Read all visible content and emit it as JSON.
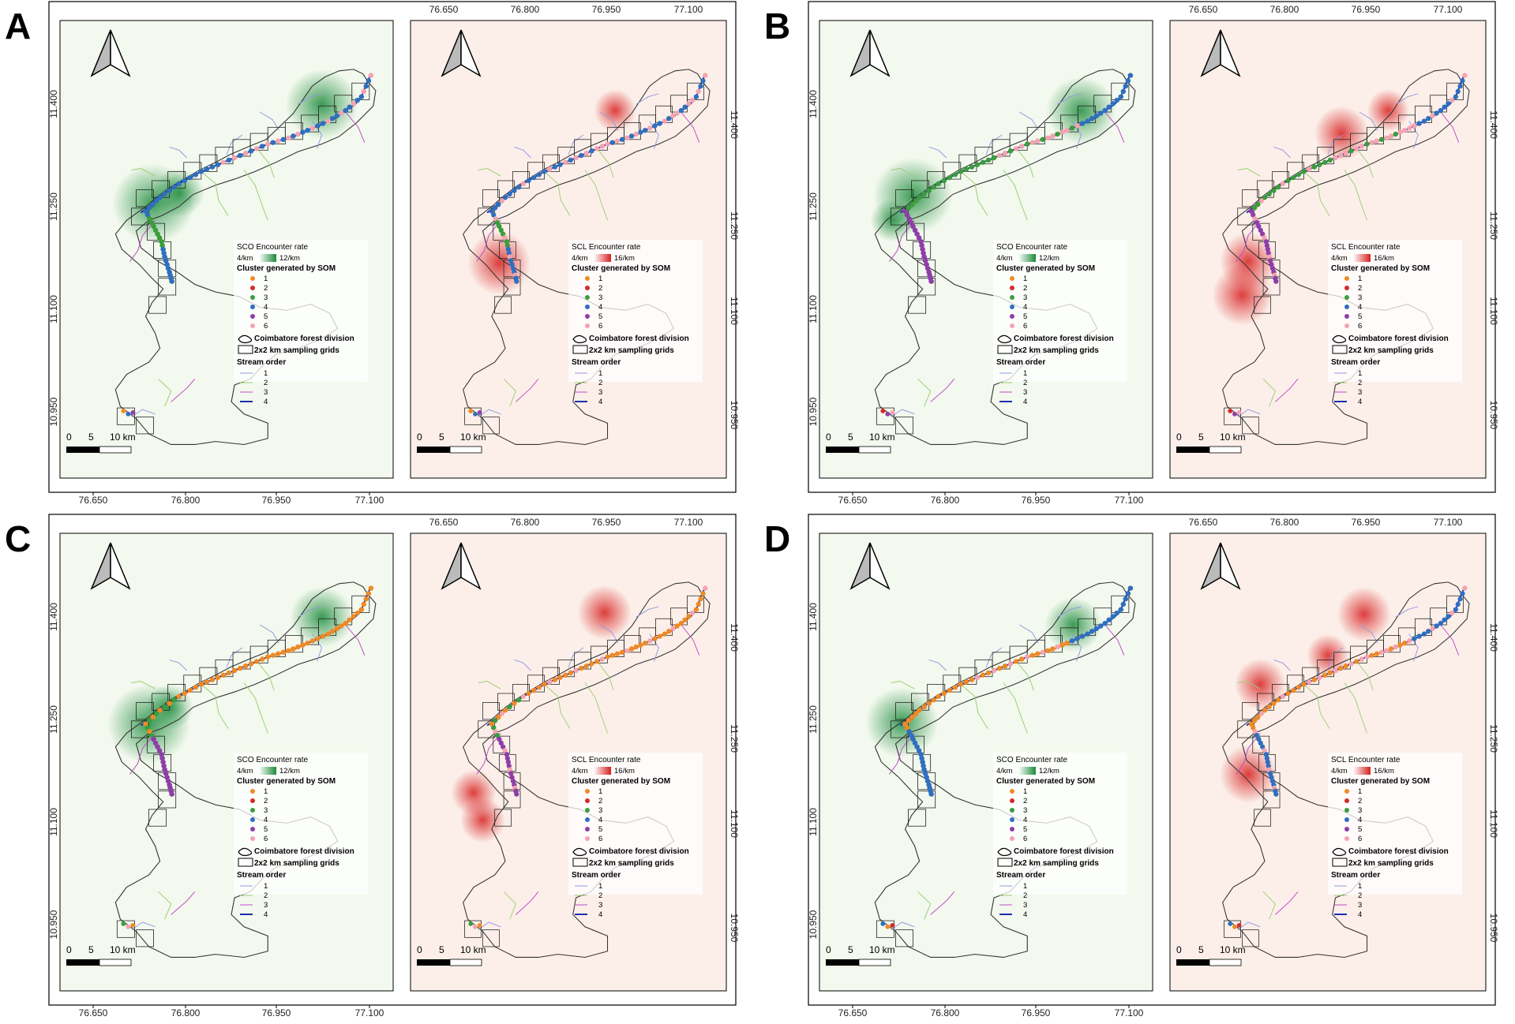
{
  "figure": {
    "panels": [
      {
        "letter": "A",
        "frame": "thin"
      },
      {
        "letter": "B",
        "frame": "thin"
      },
      {
        "letter": "C",
        "frame": "thin"
      },
      {
        "letter": "D",
        "frame": "thin"
      }
    ],
    "lon_ticks": [
      "76.650",
      "76.800",
      "76.950",
      "77.100"
    ],
    "lat_ticks": [
      "11.400",
      "11.250",
      "11.100",
      "10.950"
    ],
    "left_map": {
      "legend_rate_title": "SCO Encounter rate",
      "rate_low": "4/km",
      "rate_high": "12/km",
      "ramp_color": "#1a8a3a",
      "background": "#f3f9ee"
    },
    "right_map": {
      "legend_rate_title": "SCL Encounter rate",
      "rate_low": "4/km",
      "rate_high": "16/km",
      "ramp_color": "#d61f1f",
      "background": "#fcefe9"
    },
    "legend": {
      "cluster_title": "Cluster generated by SOM",
      "clusters": [
        {
          "label": "1",
          "color": "#f08a24"
        },
        {
          "label": "2",
          "color": "#d42a2a"
        },
        {
          "label": "3",
          "color": "#3a9e3a"
        },
        {
          "label": "4",
          "color": "#2f6fbf"
        },
        {
          "label": "5",
          "color": "#8e3ea8"
        },
        {
          "label": "6",
          "color": "#f4a3b0"
        }
      ],
      "forest_label": "Coimbatore forest division",
      "grid_label": "2x2 km sampling grids",
      "stream_title": "Stream order",
      "streams": [
        {
          "label": "1",
          "color": "#8e9ae0"
        },
        {
          "label": "2",
          "color": "#9bcf74"
        },
        {
          "label": "3",
          "color": "#c04ac8"
        },
        {
          "label": "4",
          "color": "#1a2fb0"
        }
      ]
    },
    "scale": {
      "l0": "0",
      "l5": "5",
      "l10": "10 km"
    }
  }
}
